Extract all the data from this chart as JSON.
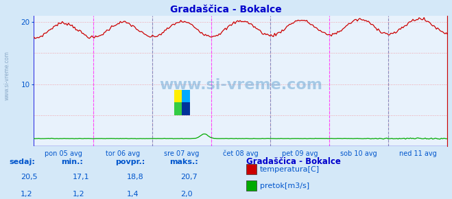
{
  "title": "Gradaščica - Bokalce",
  "bg_color": "#d4e8f8",
  "plot_bg_color": "#e8f2fc",
  "grid_color": "#e0b8c0",
  "title_color": "#0000cc",
  "axis_label_color": "#0055cc",
  "text_color": "#0055cc",
  "xlim": [
    0,
    336
  ],
  "ylim": [
    0,
    21
  ],
  "yticks": [
    10,
    20
  ],
  "y_dotted_line": 20,
  "day_labels": [
    "pon 05 avg",
    "tor 06 avg",
    "sre 07 avg",
    "čet 08 avg",
    "pet 09 avg",
    "sob 10 avg",
    "ned 11 avg"
  ],
  "day_positions": [
    0,
    48,
    96,
    144,
    192,
    240,
    288,
    336
  ],
  "vline_color": "#ff44ff",
  "vline_color2": "#8888bb",
  "temp_color": "#cc0000",
  "flow_color": "#00aa00",
  "blue_line_color": "#0000dd",
  "legend_title": "Gradaščica - Bokalce",
  "legend_items": [
    "temperatura[C]",
    "pretok[m3/s]"
  ],
  "legend_colors": [
    "#cc0000",
    "#00aa00"
  ],
  "stats_labels": [
    "sedaj:",
    "min.:",
    "povpr.:",
    "maks.:"
  ],
  "stats_temp": [
    "20,5",
    "17,1",
    "18,8",
    "20,7"
  ],
  "stats_flow": [
    "1,2",
    "1,2",
    "1,4",
    "2,0"
  ],
  "watermark": "www.si-vreme.com"
}
